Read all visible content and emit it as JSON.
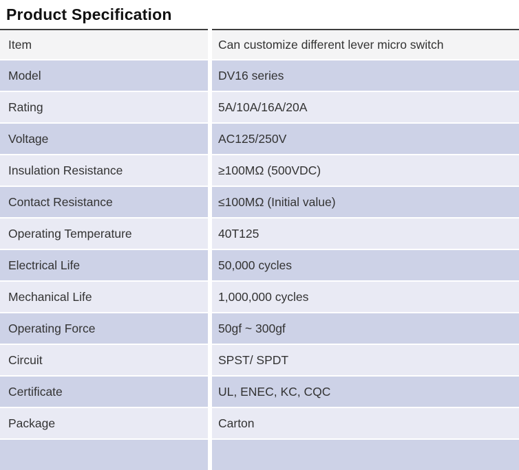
{
  "page": {
    "title": "Product Specification"
  },
  "colors": {
    "title_text": "#111111",
    "cell_text": "#333333",
    "top_rule": "#3d3d3d",
    "row_header_bg": "#f4f4f5",
    "row_dark_bg": "#cdd2e7",
    "row_light_bg": "#e9eaf4",
    "gap": "#ffffff"
  },
  "table": {
    "rows": [
      {
        "label": "Item",
        "value": "Can customize different lever micro switch",
        "shade": "header"
      },
      {
        "label": "Model",
        "value": "DV16 series",
        "shade": "dark"
      },
      {
        "label": "Rating",
        "value": "5A/10A/16A/20A",
        "shade": "light"
      },
      {
        "label": "Voltage",
        "value": "AC125/250V",
        "shade": "dark"
      },
      {
        "label": "Insulation Resistance",
        "value": "≥100MΩ (500VDC)",
        "shade": "light"
      },
      {
        "label": "Contact Resistance",
        "value": "≤100MΩ (Initial value)",
        "shade": "dark"
      },
      {
        "label": "Operating Temperature",
        "value": "40T125",
        "shade": "light"
      },
      {
        "label": "Electrical Life",
        "value": "50,000 cycles",
        "shade": "dark"
      },
      {
        "label": "Mechanical Life",
        "value": "1,000,000 cycles",
        "shade": "light"
      },
      {
        "label": "Operating Force",
        "value": "50gf ~ 300gf",
        "shade": "dark"
      },
      {
        "label": "Circuit",
        "value": "SPST/ SPDT",
        "shade": "light"
      },
      {
        "label": "Certificate",
        "value": "UL, ENEC, KC, CQC",
        "shade": "dark"
      },
      {
        "label": "Package",
        "value": "Carton",
        "shade": "light"
      },
      {
        "label": "",
        "value": "",
        "shade": "dark"
      }
    ]
  }
}
